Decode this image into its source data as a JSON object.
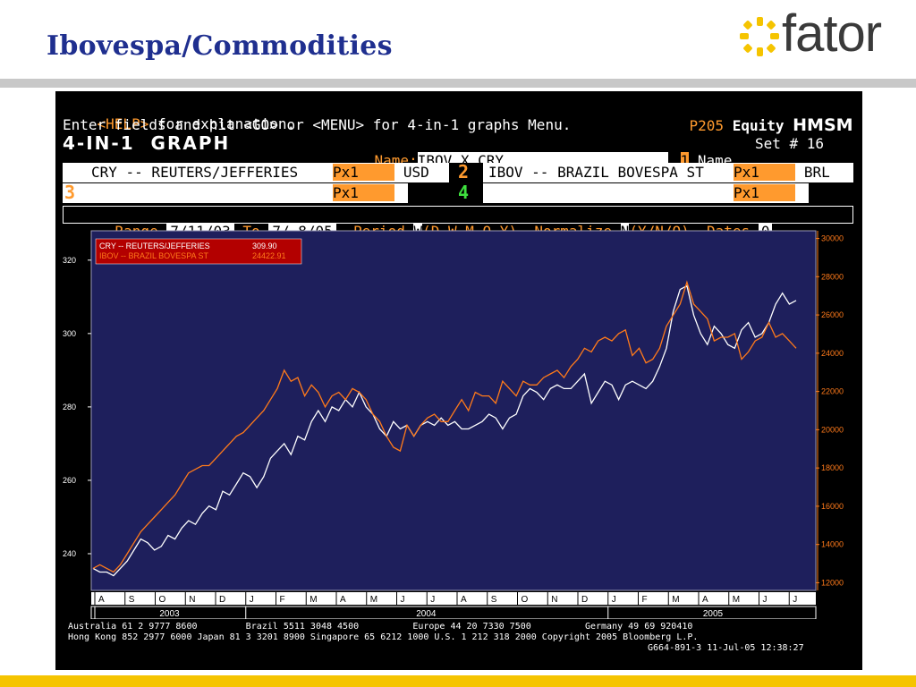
{
  "slide": {
    "title": "Ibovespa/Commodities",
    "logo_text": "fator",
    "brand_yellow": "#f5c400",
    "title_color": "#1f2f8f"
  },
  "terminal": {
    "help_key": "<HELP>",
    "help_text": " for explanation.",
    "page_code": "P205",
    "market": "Equity",
    "function": "HMSM",
    "line2": "Enter fields and hit <GO> or <MENU> for 4-in-1 graphs Menu.",
    "graph_title": "4-IN-1  GRAPH",
    "name_label": "Name:",
    "name_value": "IBOV X CRY",
    "name_num": "1",
    "name_word": "Name",
    "set_label": "Set # 16",
    "row1": {
      "num1": "1",
      "sec1": "CRY -- REUTERS/JEFFERIES",
      "px1": "Px",
      "px1_val": "1",
      "ccy1": "USD",
      "num2": "2",
      "sec2": "IBOV -- BRAZIL BOVESPA ST",
      "px2": "Px",
      "px2_val": "1",
      "ccy2": "BRL"
    },
    "row2": {
      "num3": "3",
      "px3": "Px",
      "px3_val": "1",
      "num4": "4",
      "px4": "Px",
      "px4_val": "1"
    },
    "range_label": "Range",
    "range_from": "7/11/03",
    "to_label": "To",
    "range_to": "7/ 8/05",
    "period_label": "Period",
    "period_value": "W",
    "period_opts": "(D-W-M-Q-Y)",
    "normalize_label": "Normalize",
    "normalize_value": "N",
    "normalize_opts": "(Y/N/O)",
    "dates_label": "Dates",
    "dates_value": "0",
    "footer1": "Australia 61 2 9777 8600         Brazil 5511 3048 4500          Europe 44 20 7330 7500          Germany 49 69 920410",
    "footer2": "Hong Kong 852 2977 6000 Japan 81 3 3201 8900 Singapore 65 6212 1000 U.S. 1 212 318 2000 Copyright 2005 Bloomberg L.P.",
    "footer3": "G664-891-3 11-Jul-05 12:38:27"
  },
  "chart_data": {
    "type": "line",
    "background": "#1e1f5c",
    "legend": [
      {
        "name": "CRY -- REUTERS/JEFFERIES",
        "value": "309.90",
        "color": "#ffffff"
      },
      {
        "name": "IBOV -- BRAZIL BOVESPA ST",
        "value": "24422.91",
        "color": "#ff7a1a"
      }
    ],
    "left_axis": {
      "ticks": [
        "240",
        "260",
        "280",
        "300",
        "320"
      ],
      "range": [
        230,
        328
      ]
    },
    "right_axis": {
      "ticks": [
        "12000",
        "14000",
        "16000",
        "18000",
        "20000",
        "22000",
        "24000",
        "26000",
        "28000",
        "30000"
      ],
      "range": [
        11600,
        30400
      ]
    },
    "months": [
      "A",
      "S",
      "O",
      "N",
      "D",
      "J",
      "F",
      "M",
      "A",
      "M",
      "J",
      "J",
      "A",
      "S",
      "O",
      "N",
      "D",
      "J",
      "F",
      "M",
      "A",
      "M",
      "J",
      "J"
    ],
    "years": [
      "2003",
      "2004",
      "2005"
    ],
    "series": [
      {
        "name": "CRY -- REUTERS/JEFFERIES",
        "color": "#ffffff",
        "axis": "left",
        "values": [
          236,
          235,
          235,
          234,
          236,
          238,
          241,
          244,
          243,
          241,
          242,
          245,
          244,
          247,
          249,
          248,
          251,
          253,
          252,
          257,
          256,
          259,
          262,
          261,
          258,
          261,
          266,
          268,
          270,
          267,
          272,
          271,
          276,
          279,
          276,
          280,
          279,
          282,
          280,
          284,
          280,
          278,
          274,
          272,
          276,
          274,
          275,
          272,
          275,
          276,
          275,
          277,
          275,
          276,
          274,
          274,
          275,
          276,
          278,
          277,
          274,
          277,
          278,
          283,
          285,
          284,
          282,
          285,
          286,
          285,
          285,
          287,
          289,
          281,
          284,
          287,
          286,
          282,
          286,
          287,
          286,
          285,
          287,
          291,
          296,
          306,
          312,
          313,
          305,
          300,
          297,
          302,
          300,
          297,
          296,
          301,
          303,
          299,
          300,
          303,
          308,
          311,
          308,
          309
        ]
      },
      {
        "name": "IBOV -- BRAZIL BOVESPA ST",
        "color": "#ff7a1a",
        "axis": "left",
        "values": [
          236,
          237,
          236,
          235,
          237,
          240,
          243,
          246,
          248,
          250,
          252,
          254,
          256,
          259,
          262,
          263,
          264,
          264,
          266,
          268,
          270,
          272,
          273,
          275,
          277,
          279,
          282,
          285,
          290,
          287,
          288,
          283,
          286,
          284,
          280,
          283,
          284,
          282,
          285,
          284,
          282,
          278,
          276,
          272,
          269,
          268,
          275,
          272,
          275,
          277,
          278,
          276,
          276,
          279,
          282,
          279,
          284,
          283,
          283,
          281,
          287,
          285,
          283,
          287,
          286,
          286,
          288,
          289,
          290,
          288,
          291,
          293,
          296,
          295,
          298,
          299,
          298,
          300,
          301,
          294,
          296,
          292,
          293,
          296,
          302,
          305,
          308,
          314,
          308,
          306,
          304,
          298,
          299,
          299,
          300,
          293,
          295,
          298,
          299,
          303,
          299,
          300,
          298,
          296
        ]
      }
    ]
  }
}
